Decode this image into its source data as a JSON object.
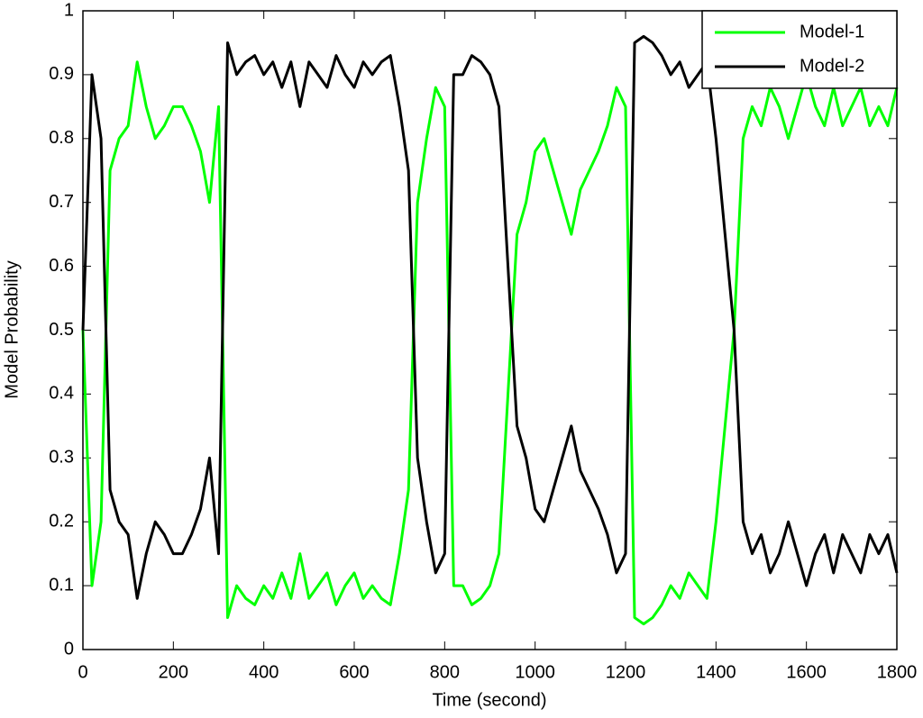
{
  "chart_data": {
    "type": "line",
    "xlabel": "Time (second)",
    "ylabel": "Model Probability",
    "x": [
      0,
      20,
      40,
      60,
      80,
      100,
      120,
      140,
      160,
      180,
      200,
      220,
      240,
      260,
      280,
      300,
      320,
      340,
      360,
      380,
      400,
      420,
      440,
      460,
      480,
      500,
      520,
      540,
      560,
      580,
      600,
      620,
      640,
      660,
      680,
      700,
      720,
      740,
      760,
      780,
      800,
      820,
      840,
      860,
      880,
      900,
      920,
      940,
      960,
      980,
      1000,
      1020,
      1040,
      1060,
      1080,
      1100,
      1120,
      1140,
      1160,
      1180,
      1200,
      1220,
      1240,
      1260,
      1280,
      1300,
      1320,
      1340,
      1360,
      1380,
      1400,
      1420,
      1440,
      1460,
      1480,
      1500,
      1520,
      1540,
      1560,
      1580,
      1600,
      1620,
      1640,
      1660,
      1680,
      1700,
      1720,
      1740,
      1760,
      1780,
      1800
    ],
    "series": [
      {
        "name": "Model-1",
        "color": "#00ff00",
        "values": [
          0.5,
          0.1,
          0.2,
          0.75,
          0.8,
          0.82,
          0.92,
          0.85,
          0.8,
          0.82,
          0.85,
          0.85,
          0.82,
          0.78,
          0.7,
          0.85,
          0.05,
          0.1,
          0.08,
          0.07,
          0.1,
          0.08,
          0.12,
          0.08,
          0.15,
          0.08,
          0.1,
          0.12,
          0.07,
          0.1,
          0.12,
          0.08,
          0.1,
          0.08,
          0.07,
          0.15,
          0.25,
          0.7,
          0.8,
          0.88,
          0.85,
          0.1,
          0.1,
          0.07,
          0.08,
          0.1,
          0.15,
          0.4,
          0.65,
          0.7,
          0.78,
          0.8,
          0.75,
          0.7,
          0.65,
          0.72,
          0.75,
          0.78,
          0.82,
          0.88,
          0.85,
          0.05,
          0.04,
          0.05,
          0.07,
          0.1,
          0.08,
          0.12,
          0.1,
          0.08,
          0.2,
          0.35,
          0.5,
          0.8,
          0.85,
          0.82,
          0.88,
          0.85,
          0.8,
          0.85,
          0.9,
          0.85,
          0.82,
          0.88,
          0.82,
          0.85,
          0.88,
          0.82,
          0.85,
          0.82,
          0.88
        ]
      },
      {
        "name": "Model-2",
        "color": "#000000",
        "values": [
          0.5,
          0.9,
          0.8,
          0.25,
          0.2,
          0.18,
          0.08,
          0.15,
          0.2,
          0.18,
          0.15,
          0.15,
          0.18,
          0.22,
          0.3,
          0.15,
          0.95,
          0.9,
          0.92,
          0.93,
          0.9,
          0.92,
          0.88,
          0.92,
          0.85,
          0.92,
          0.9,
          0.88,
          0.93,
          0.9,
          0.88,
          0.92,
          0.9,
          0.92,
          0.93,
          0.85,
          0.75,
          0.3,
          0.2,
          0.12,
          0.15,
          0.9,
          0.9,
          0.93,
          0.92,
          0.9,
          0.85,
          0.6,
          0.35,
          0.3,
          0.22,
          0.2,
          0.25,
          0.3,
          0.35,
          0.28,
          0.25,
          0.22,
          0.18,
          0.12,
          0.15,
          0.95,
          0.96,
          0.95,
          0.93,
          0.9,
          0.92,
          0.88,
          0.9,
          0.92,
          0.8,
          0.65,
          0.5,
          0.2,
          0.15,
          0.18,
          0.12,
          0.15,
          0.2,
          0.15,
          0.1,
          0.15,
          0.18,
          0.12,
          0.18,
          0.15,
          0.12,
          0.18,
          0.15,
          0.18,
          0.12
        ]
      }
    ],
    "xlim": [
      0,
      1800
    ],
    "xticks": [
      0,
      200,
      400,
      600,
      800,
      1000,
      1200,
      1400,
      1600,
      1800
    ],
    "ylim": [
      0,
      1
    ],
    "yticks": [
      0,
      0.1,
      0.2,
      0.3,
      0.4,
      0.5,
      0.6,
      0.7,
      0.8,
      0.9,
      1
    ],
    "grid": false,
    "legend": "top-right"
  }
}
